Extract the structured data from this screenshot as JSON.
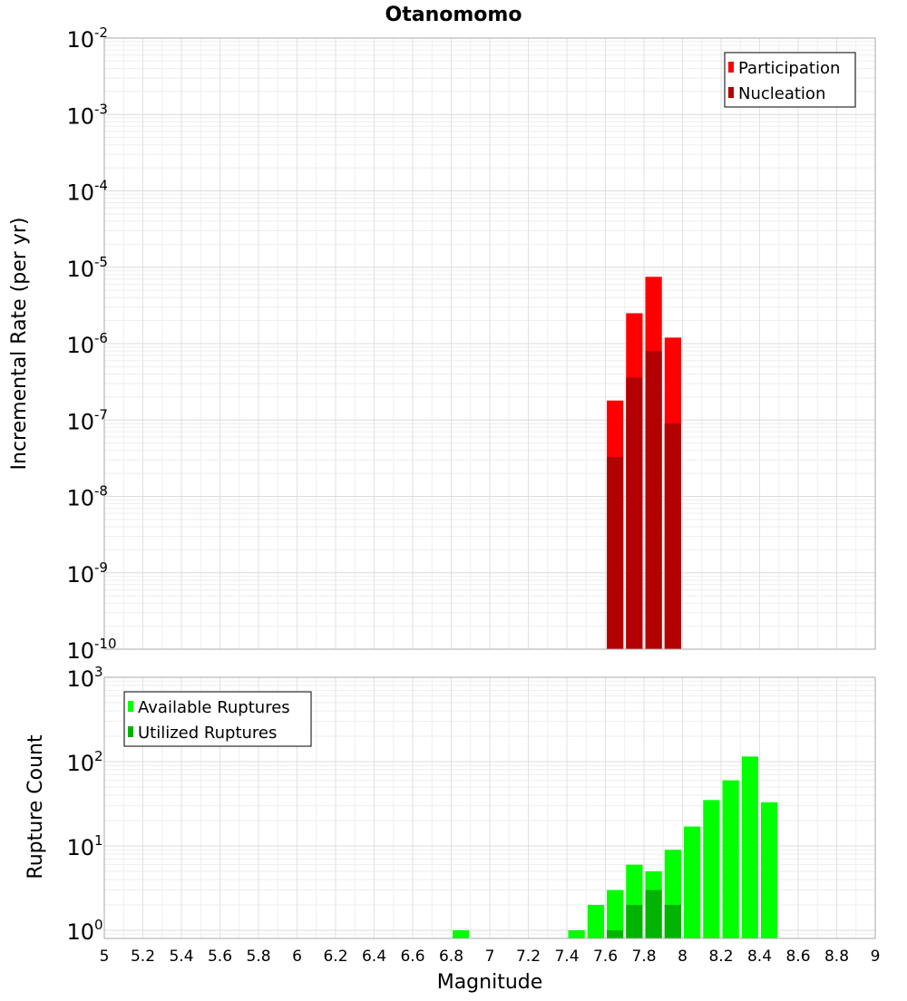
{
  "chart_data": [
    {
      "type": "bar",
      "title": "Otanomomo",
      "xlabel": "",
      "ylabel": "Incremental Rate (per yr)",
      "xlim": [
        5,
        9
      ],
      "ylim": [
        1e-10,
        0.01
      ],
      "yscale": "log",
      "grid": true,
      "legend_position": "top-right",
      "bin_width": 0.1,
      "x": [
        7.65,
        7.75,
        7.85,
        7.95
      ],
      "series": [
        {
          "name": "Participation",
          "color": "#ff0000",
          "values": [
            1.8e-07,
            2.5e-06,
            7.5e-06,
            1.2e-06
          ]
        },
        {
          "name": "Nucleation",
          "color": "#b30000",
          "values": [
            3.3e-08,
            3.6e-07,
            8e-07,
            9e-08
          ]
        }
      ]
    },
    {
      "type": "bar",
      "title": "",
      "xlabel": "Magnitude",
      "ylabel": "Rupture Count",
      "xlim": [
        5,
        9
      ],
      "ylim": [
        0.8,
        1000
      ],
      "yscale": "log",
      "grid": true,
      "legend_position": "top-left",
      "bin_width": 0.1,
      "x": [
        6.85,
        7.45,
        7.55,
        7.65,
        7.75,
        7.85,
        7.95,
        8.05,
        8.15,
        8.25,
        8.35,
        8.45
      ],
      "series": [
        {
          "name": "Available Ruptures",
          "color": "#00ff00",
          "values": [
            1,
            1,
            2,
            3,
            6,
            5,
            9,
            17,
            35,
            60,
            115,
            33
          ]
        },
        {
          "name": "Utilized Ruptures",
          "color": "#00b300",
          "values": [
            0,
            0,
            0,
            1,
            2,
            3,
            2,
            0,
            0,
            0,
            0,
            0
          ]
        }
      ]
    }
  ],
  "x_ticks": [
    "5",
    "5.2",
    "5.4",
    "5.6",
    "5.8",
    "6",
    "6.2",
    "6.4",
    "6.6",
    "6.8",
    "7",
    "7.2",
    "7.4",
    "7.6",
    "7.8",
    "8",
    "8.2",
    "8.4",
    "8.6",
    "8.8",
    "9"
  ],
  "top_y_ticks": [
    {
      "base": "10",
      "exp": "-2"
    },
    {
      "base": "10",
      "exp": "-3"
    },
    {
      "base": "10",
      "exp": "-4"
    },
    {
      "base": "10",
      "exp": "-5"
    },
    {
      "base": "10",
      "exp": "-6"
    },
    {
      "base": "10",
      "exp": "-7"
    },
    {
      "base": "10",
      "exp": "-8"
    },
    {
      "base": "10",
      "exp": "-9"
    },
    {
      "base": "10",
      "exp": "-10"
    }
  ],
  "bottom_y_ticks": [
    {
      "base": "10",
      "exp": "3"
    },
    {
      "base": "10",
      "exp": "2"
    },
    {
      "base": "10",
      "exp": "1"
    },
    {
      "base": "10",
      "exp": "0"
    }
  ]
}
